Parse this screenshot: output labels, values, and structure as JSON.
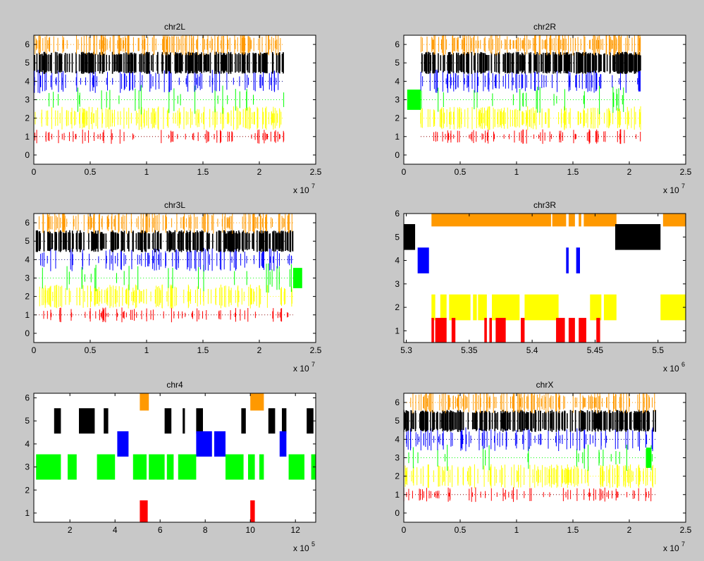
{
  "figure": {
    "background": "#c8c8c8",
    "axes_background": "#ffffff"
  },
  "colors": {
    "level1": "#ff0000",
    "level2": "#ffff00",
    "level3": "#00ff00",
    "level4": "#0000ff",
    "level5": "#000000",
    "level6": "#ff9900",
    "dotted_red": "#8b0000",
    "dotted_blue": "#000080"
  },
  "chart_data": [
    {
      "type": "bar",
      "title": "chr2L",
      "xlim": [
        0,
        25000000
      ],
      "ylim": [
        -0.5,
        6.5
      ],
      "xticks": [
        0,
        5000000,
        10000000,
        15000000,
        20000000,
        25000000
      ],
      "xtick_labels": [
        "0",
        "0.5",
        "1",
        "1.5",
        "2",
        "2.5"
      ],
      "yticks": [
        0,
        1,
        2,
        3,
        4,
        5,
        6
      ],
      "ytick_labels": [
        "0",
        "1",
        "2",
        "3",
        "4",
        "5",
        "6"
      ],
      "x_exponent": {
        "base": "x 10",
        "power": "7"
      },
      "dense": true,
      "data_extent": [
        0,
        22200000
      ],
      "levels": [
        1,
        2,
        3,
        4,
        5,
        6
      ],
      "blocks": []
    },
    {
      "type": "bar",
      "title": "chr2R",
      "xlim": [
        0,
        25000000
      ],
      "ylim": [
        -0.5,
        6.5
      ],
      "xticks": [
        0,
        5000000,
        10000000,
        15000000,
        20000000,
        25000000
      ],
      "xtick_labels": [
        "0",
        "0.5",
        "1",
        "1.5",
        "2",
        "2.5"
      ],
      "yticks": [
        0,
        1,
        2,
        3,
        4,
        5,
        6
      ],
      "ytick_labels": [
        "0",
        "1",
        "2",
        "3",
        "4",
        "5",
        "6"
      ],
      "x_exponent": {
        "base": "x 10",
        "power": "7"
      },
      "dense": true,
      "data_extent": [
        1500000,
        21000000
      ],
      "levels": [
        1,
        2,
        3,
        4,
        5,
        6
      ],
      "blocks": [
        {
          "level": 3,
          "x0": 300000,
          "x1": 1500000
        },
        {
          "level": 4,
          "x0": 20800000,
          "x1": 21000000
        }
      ]
    },
    {
      "type": "bar",
      "title": "chr3L",
      "xlim": [
        0,
        25000000
      ],
      "ylim": [
        -0.5,
        6.5
      ],
      "xticks": [
        0,
        5000000,
        10000000,
        15000000,
        20000000,
        25000000
      ],
      "xtick_labels": [
        "0",
        "0.5",
        "1",
        "1.5",
        "2",
        "2.5"
      ],
      "yticks": [
        0,
        1,
        2,
        3,
        4,
        5,
        6
      ],
      "ytick_labels": [
        "0",
        "1",
        "2",
        "3",
        "4",
        "5",
        "6"
      ],
      "x_exponent": {
        "base": "x 10",
        "power": "7"
      },
      "dense": true,
      "data_extent": [
        200000,
        23000000
      ],
      "levels": [
        1,
        2,
        3,
        4,
        5,
        6
      ],
      "blocks": [
        {
          "level": 3,
          "x0": 23000000,
          "x1": 23800000
        }
      ]
    },
    {
      "type": "bar",
      "title": "chr3R",
      "xlim": [
        5298000,
        5522000
      ],
      "ylim": [
        0.5,
        6.0
      ],
      "xticks": [
        5300000,
        5350000,
        5400000,
        5450000,
        5500000
      ],
      "xtick_labels": [
        "5.3",
        "5.35",
        "5.4",
        "5.45",
        "5.5"
      ],
      "yticks": [
        1,
        2,
        3,
        4,
        5,
        6
      ],
      "ytick_labels": [
        "1",
        "2",
        "3",
        "4",
        "5",
        "6"
      ],
      "x_exponent": {
        "base": "x 10",
        "power": "6"
      },
      "dense": false,
      "blocks": [
        {
          "level": 6,
          "x0": 5320000,
          "x1": 5415000
        },
        {
          "level": 6,
          "x0": 5416000,
          "x1": 5427000
        },
        {
          "level": 6,
          "x0": 5429000,
          "x1": 5434000
        },
        {
          "level": 6,
          "x0": 5437000,
          "x1": 5439000
        },
        {
          "level": 6,
          "x0": 5441000,
          "x1": 5467000
        },
        {
          "level": 6,
          "x0": 5504000,
          "x1": 5522000
        },
        {
          "level": 5,
          "x0": 5298000,
          "x1": 5307000
        },
        {
          "level": 5,
          "x0": 5466000,
          "x1": 5502000
        },
        {
          "level": 4,
          "x0": 5309000,
          "x1": 5318000
        },
        {
          "level": 4,
          "x0": 5427000,
          "x1": 5429000
        },
        {
          "level": 4,
          "x0": 5435000,
          "x1": 5438000
        },
        {
          "level": 2,
          "x0": 5320000,
          "x1": 5323000
        },
        {
          "level": 2,
          "x0": 5327000,
          "x1": 5332000
        },
        {
          "level": 2,
          "x0": 5334000,
          "x1": 5351000
        },
        {
          "level": 2,
          "x0": 5353000,
          "x1": 5356000
        },
        {
          "level": 2,
          "x0": 5357000,
          "x1": 5364000
        },
        {
          "level": 2,
          "x0": 5368000,
          "x1": 5390000
        },
        {
          "level": 2,
          "x0": 5394000,
          "x1": 5421000
        },
        {
          "level": 2,
          "x0": 5446000,
          "x1": 5455000
        },
        {
          "level": 2,
          "x0": 5457000,
          "x1": 5467000
        },
        {
          "level": 2,
          "x0": 5502000,
          "x1": 5522000
        },
        {
          "level": 1,
          "x0": 5320000,
          "x1": 5322000
        },
        {
          "level": 1,
          "x0": 5323000,
          "x1": 5332000
        },
        {
          "level": 1,
          "x0": 5336000,
          "x1": 5339000
        },
        {
          "level": 1,
          "x0": 5362000,
          "x1": 5364000
        },
        {
          "level": 1,
          "x0": 5366000,
          "x1": 5368000
        },
        {
          "level": 1,
          "x0": 5371000,
          "x1": 5379000
        },
        {
          "level": 1,
          "x0": 5391000,
          "x1": 5394000
        },
        {
          "level": 1,
          "x0": 5419000,
          "x1": 5426000
        },
        {
          "level": 1,
          "x0": 5429000,
          "x1": 5434000
        },
        {
          "level": 1,
          "x0": 5437000,
          "x1": 5443000
        },
        {
          "level": 1,
          "x0": 5451000,
          "x1": 5454000
        }
      ]
    },
    {
      "type": "bar",
      "title": "chr4",
      "xlim": [
        40000,
        1290000
      ],
      "ylim": [
        0.6,
        6.2
      ],
      "xticks": [
        200000,
        400000,
        600000,
        800000,
        1000000,
        1200000
      ],
      "xtick_labels": [
        "2",
        "4",
        "6",
        "8",
        "10",
        "12"
      ],
      "yticks": [
        1,
        2,
        3,
        4,
        5,
        6
      ],
      "ytick_labels": [
        "1",
        "2",
        "3",
        "4",
        "5",
        "6"
      ],
      "x_exponent": {
        "base": "x 10",
        "power": "5"
      },
      "dense": false,
      "blocks": [
        {
          "level": 6,
          "x0": 510000,
          "x1": 550000
        },
        {
          "level": 6,
          "x0": 1000000,
          "x1": 1060000
        },
        {
          "level": 5,
          "x0": 130000,
          "x1": 160000
        },
        {
          "level": 5,
          "x0": 240000,
          "x1": 310000
        },
        {
          "level": 5,
          "x0": 350000,
          "x1": 370000
        },
        {
          "level": 5,
          "x0": 620000,
          "x1": 650000
        },
        {
          "level": 5,
          "x0": 700000,
          "x1": 710000
        },
        {
          "level": 5,
          "x0": 760000,
          "x1": 790000
        },
        {
          "level": 5,
          "x0": 960000,
          "x1": 980000
        },
        {
          "level": 5,
          "x0": 1080000,
          "x1": 1110000
        },
        {
          "level": 5,
          "x0": 1140000,
          "x1": 1160000
        },
        {
          "level": 5,
          "x0": 1250000,
          "x1": 1280000
        },
        {
          "level": 4,
          "x0": 410000,
          "x1": 460000
        },
        {
          "level": 4,
          "x0": 760000,
          "x1": 830000
        },
        {
          "level": 4,
          "x0": 840000,
          "x1": 890000
        },
        {
          "level": 4,
          "x0": 1130000,
          "x1": 1160000
        },
        {
          "level": 3,
          "x0": 50000,
          "x1": 160000
        },
        {
          "level": 3,
          "x0": 190000,
          "x1": 230000
        },
        {
          "level": 3,
          "x0": 320000,
          "x1": 400000
        },
        {
          "level": 3,
          "x0": 480000,
          "x1": 540000
        },
        {
          "level": 3,
          "x0": 550000,
          "x1": 620000
        },
        {
          "level": 3,
          "x0": 630000,
          "x1": 660000
        },
        {
          "level": 3,
          "x0": 680000,
          "x1": 760000
        },
        {
          "level": 3,
          "x0": 890000,
          "x1": 970000
        },
        {
          "level": 3,
          "x0": 990000,
          "x1": 1020000
        },
        {
          "level": 3,
          "x0": 1040000,
          "x1": 1060000
        },
        {
          "level": 3,
          "x0": 1170000,
          "x1": 1240000
        },
        {
          "level": 3,
          "x0": 1270000,
          "x1": 1290000
        },
        {
          "level": 1,
          "x0": 510000,
          "x1": 545000
        },
        {
          "level": 1,
          "x0": 1000000,
          "x1": 1020000
        }
      ]
    },
    {
      "type": "bar",
      "title": "chrX",
      "xlim": [
        0,
        25000000
      ],
      "ylim": [
        -0.5,
        6.5
      ],
      "xticks": [
        0,
        5000000,
        10000000,
        15000000,
        20000000,
        25000000
      ],
      "xtick_labels": [
        "0",
        "0.5",
        "1",
        "1.5",
        "2",
        "2.5"
      ],
      "yticks": [
        0,
        1,
        2,
        3,
        4,
        5,
        6
      ],
      "ytick_labels": [
        "0",
        "1",
        "2",
        "3",
        "4",
        "5",
        "6"
      ],
      "x_exponent": {
        "base": "x 10",
        "power": "7"
      },
      "dense": true,
      "data_extent": [
        0,
        22400000
      ],
      "levels": [
        1,
        2,
        3,
        4,
        5,
        6
      ],
      "blocks": [
        {
          "level": 3,
          "x0": 21500000,
          "x1": 21900000
        }
      ]
    }
  ]
}
